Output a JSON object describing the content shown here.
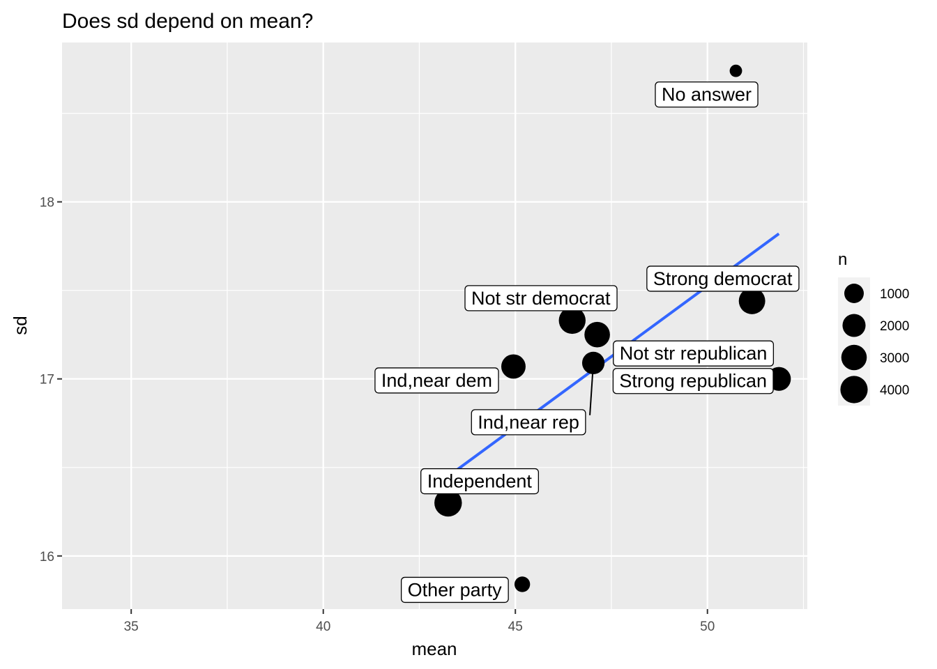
{
  "chart_data": {
    "type": "scatter",
    "title": "Does sd depend on mean?",
    "xlabel": "mean",
    "ylabel": "sd",
    "xlim": [
      33.2,
      52.6
    ],
    "ylim": [
      15.7,
      18.9
    ],
    "x_ticks": [
      35,
      40,
      45,
      50
    ],
    "y_ticks": [
      16,
      17,
      18
    ],
    "grid": true,
    "legend": {
      "title": "n",
      "position": "right",
      "entries": [
        {
          "label": "1000",
          "value": 1000
        },
        {
          "label": "2000",
          "value": 2000
        },
        {
          "label": "3000",
          "value": 3000
        },
        {
          "label": "4000",
          "value": 4000
        }
      ]
    },
    "points": [
      {
        "label": "No answer",
        "x": 50.74,
        "y": 18.74,
        "n": 150
      },
      {
        "label": "Strong democrat",
        "x": 51.16,
        "y": 17.44,
        "n": 3490
      },
      {
        "label": "Not str democrat",
        "x": 46.48,
        "y": 17.33,
        "n": 3690
      },
      {
        "label": "Not str republican",
        "x": 47.13,
        "y": 17.25,
        "n": 3032
      },
      {
        "label": "Ind,near dem",
        "x": 44.95,
        "y": 17.07,
        "n": 2499
      },
      {
        "label": "Ind,near rep",
        "x": 47.03,
        "y": 17.09,
        "n": 1791
      },
      {
        "label": "Strong republican",
        "x": 51.86,
        "y": 17.0,
        "n": 2314
      },
      {
        "label": "Independent",
        "x": 43.25,
        "y": 16.3,
        "n": 4119
      },
      {
        "label": "Other party",
        "x": 45.18,
        "y": 15.84,
        "n": 393
      }
    ],
    "trend_line": {
      "x": [
        43.25,
        51.86
      ],
      "y": [
        16.45,
        17.82
      ],
      "color": "#3366FF"
    }
  }
}
